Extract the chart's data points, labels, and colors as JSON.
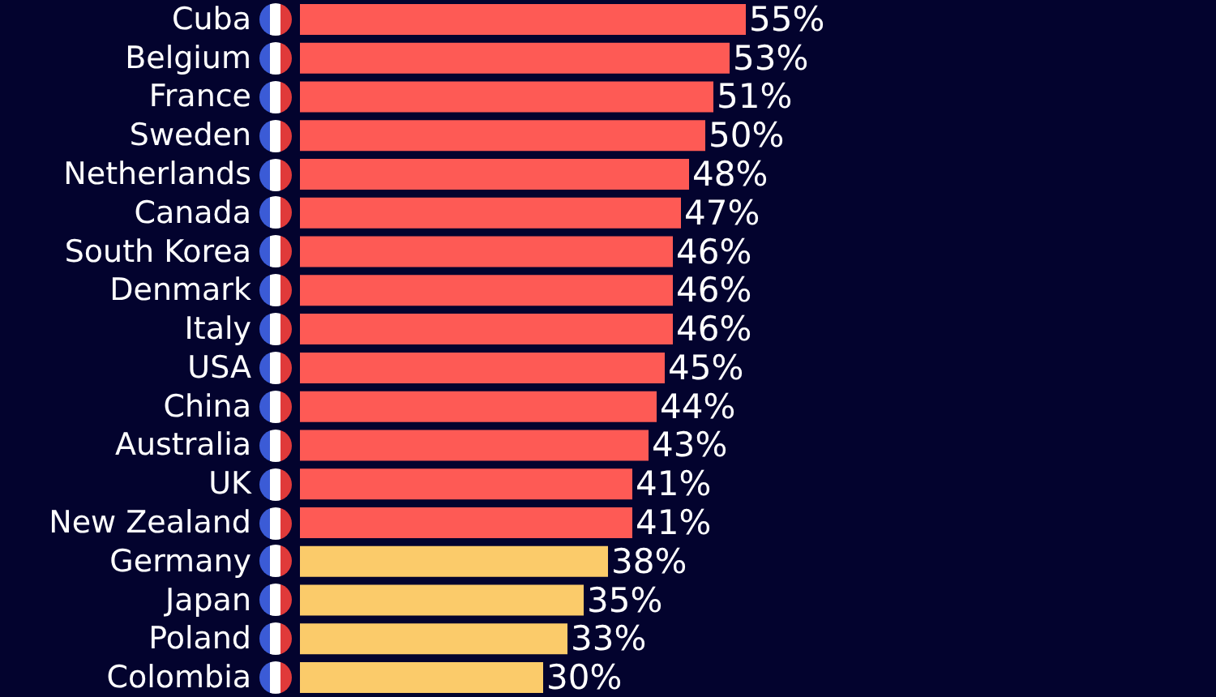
{
  "chart_data": {
    "type": "bar",
    "orientation": "horizontal",
    "categories": [
      "Cuba",
      "Belgium",
      "France",
      "Sweden",
      "Netherlands",
      "Canada",
      "South Korea",
      "Denmark",
      "Italy",
      "USA",
      "China",
      "Australia",
      "UK",
      "New Zealand",
      "Germany",
      "Japan",
      "Poland",
      "Colombia"
    ],
    "values": [
      55,
      53,
      51,
      50,
      48,
      47,
      46,
      46,
      46,
      45,
      44,
      43,
      41,
      41,
      38,
      35,
      33,
      30
    ],
    "value_labels": [
      "55%",
      "53%",
      "51%",
      "50%",
      "48%",
      "47%",
      "46%",
      "46%",
      "46%",
      "45%",
      "44%",
      "43%",
      "41%",
      "41%",
      "38%",
      "35%",
      "33%",
      "30%"
    ],
    "colors": [
      "#fe5a55",
      "#fe5a55",
      "#fe5a55",
      "#fe5a55",
      "#fe5a55",
      "#fe5a55",
      "#fe5a55",
      "#fe5a55",
      "#fe5a55",
      "#fe5a55",
      "#fe5a55",
      "#fe5a55",
      "#fe5a55",
      "#fe5a55",
      "#fbcb6a",
      "#fbcb6a",
      "#fbcb6a",
      "#fbcb6a"
    ]
  }
}
